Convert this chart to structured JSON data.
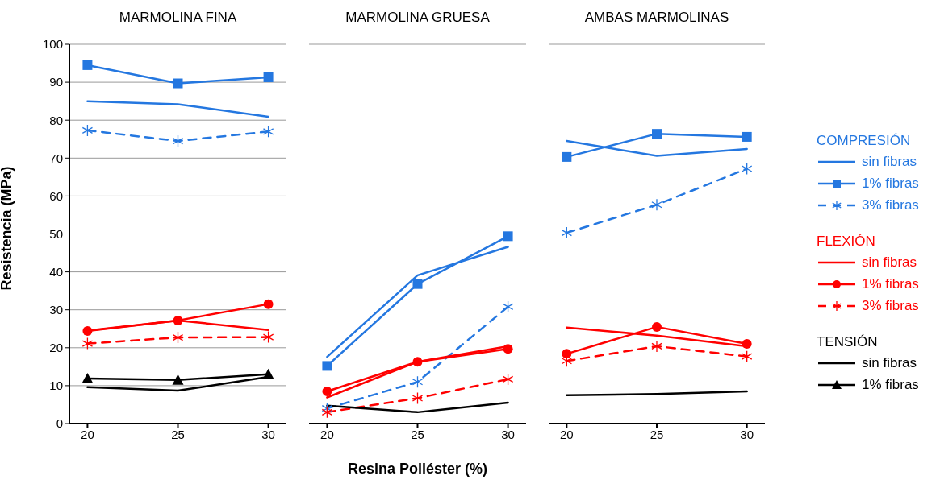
{
  "chart_data": [
    {
      "type": "line",
      "title": "MARMOLINA FINA",
      "ylabel": "Resistencia (MPa)",
      "x": [
        20,
        25,
        30
      ],
      "xlim": [
        19,
        31
      ],
      "xticks": [
        20,
        25,
        30
      ],
      "ylim": [
        0,
        100
      ],
      "yticks": [
        0,
        10,
        20,
        30,
        40,
        50,
        60,
        70,
        80,
        90,
        100
      ],
      "grid": "y",
      "legend": false,
      "series": [
        {
          "color": "#2477e0",
          "marker": "none",
          "line_style": "solid",
          "values": [
            85.0,
            84.2,
            80.9
          ]
        },
        {
          "color": "#2477e0",
          "marker": "square",
          "line_style": "solid",
          "values": [
            94.5,
            89.7,
            91.3
          ]
        },
        {
          "color": "#2477e0",
          "marker": "cross",
          "line_style": "dashed",
          "values": [
            77.3,
            74.5,
            77.0
          ]
        },
        {
          "color": "#ff0000",
          "marker": "none",
          "line_style": "solid",
          "values": [
            24.5,
            27.2,
            24.7
          ]
        },
        {
          "color": "#ff0000",
          "marker": "circle",
          "line_style": "solid",
          "values": [
            24.4,
            27.2,
            31.5
          ]
        },
        {
          "color": "#ff0000",
          "marker": "cross",
          "line_style": "dashed",
          "values": [
            21.1,
            22.7,
            22.8
          ]
        },
        {
          "color": "#000000",
          "marker": "none",
          "line_style": "solid",
          "values": [
            9.6,
            8.7,
            12.3
          ]
        },
        {
          "color": "#000000",
          "marker": "triangle",
          "line_style": "solid",
          "values": [
            11.9,
            11.5,
            13.0
          ]
        }
      ]
    },
    {
      "type": "line",
      "title": "MARMOLINA GRUESA",
      "xlabel": "Resina Poliéster (%)",
      "x": [
        20,
        25,
        30
      ],
      "xlim": [
        19,
        31
      ],
      "xticks": [
        20,
        25,
        30
      ],
      "ylim": [
        0,
        100
      ],
      "yticks": [
        0,
        10,
        20,
        30,
        40,
        50,
        60,
        70,
        80,
        90,
        100
      ],
      "grid": "y",
      "legend": false,
      "tick_labels": "x",
      "series": [
        {
          "color": "#2477e0",
          "marker": "none",
          "line_style": "solid",
          "values": [
            17.6,
            39.1,
            46.6
          ]
        },
        {
          "color": "#2477e0",
          "marker": "square",
          "line_style": "solid",
          "values": [
            15.2,
            36.8,
            49.4
          ]
        },
        {
          "color": "#2477e0",
          "marker": "cross",
          "line_style": "dashed",
          "values": [
            4.0,
            11.0,
            30.8
          ]
        },
        {
          "color": "#ff0000",
          "marker": "none",
          "line_style": "solid",
          "values": [
            6.9,
            16.3,
            20.4
          ]
        },
        {
          "color": "#ff0000",
          "marker": "circle",
          "line_style": "solid",
          "values": [
            8.5,
            16.3,
            19.7
          ]
        },
        {
          "color": "#ff0000",
          "marker": "cross",
          "line_style": "dashed",
          "values": [
            3.0,
            6.7,
            11.7
          ]
        },
        {
          "color": "#000000",
          "marker": "none",
          "line_style": "solid",
          "values": [
            4.7,
            3.0,
            5.5
          ]
        }
      ]
    },
    {
      "type": "line",
      "title": "AMBAS MARMOLINAS",
      "x": [
        20,
        25,
        30
      ],
      "xlim": [
        19,
        31
      ],
      "xticks": [
        20,
        25,
        30
      ],
      "ylim": [
        0,
        100
      ],
      "yticks": [
        0,
        10,
        20,
        30,
        40,
        50,
        60,
        70,
        80,
        90,
        100
      ],
      "grid": "y",
      "legend": "right",
      "tick_labels": "x",
      "annotations": [
        "COMPRESIÓN",
        "FLEXIÓN",
        "TENSIÓN"
      ],
      "series": [
        {
          "name": "sin fibras",
          "color": "#2477e0",
          "marker": "none",
          "line_style": "solid",
          "values": [
            74.5,
            70.6,
            72.4
          ]
        },
        {
          "name": "1% fibras",
          "color": "#2477e0",
          "marker": "square",
          "line_style": "solid",
          "values": [
            70.3,
            76.4,
            75.6
          ]
        },
        {
          "name": "3% fibras",
          "color": "#2477e0",
          "marker": "cross",
          "line_style": "dashed",
          "values": [
            50.3,
            57.7,
            67.2
          ]
        },
        {
          "name": "sin fibras",
          "color": "#ff0000",
          "marker": "none",
          "line_style": "solid",
          "values": [
            25.3,
            23.2,
            20.4
          ]
        },
        {
          "name": "1% fibras",
          "color": "#ff0000",
          "marker": "circle",
          "line_style": "solid",
          "values": [
            18.4,
            25.5,
            21.0
          ]
        },
        {
          "name": "3% fibras",
          "color": "#ff0000",
          "marker": "cross",
          "line_style": "dashed",
          "values": [
            16.5,
            20.4,
            17.7
          ]
        },
        {
          "name": "sin fibras",
          "color": "#000000",
          "marker": "none",
          "line_style": "solid",
          "values": [
            7.5,
            7.8,
            8.5
          ]
        },
        {
          "name": "1% fibras",
          "color": "#000000",
          "marker": "triangle",
          "line_style": "solid",
          "values": [
            null,
            null,
            null
          ]
        }
      ]
    }
  ]
}
